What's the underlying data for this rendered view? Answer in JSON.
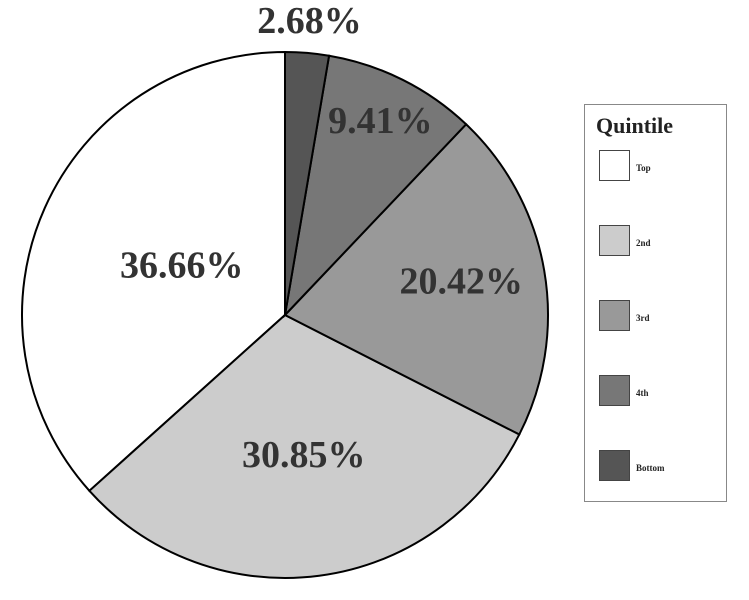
{
  "chart_data": {
    "type": "pie",
    "categories": [
      "Top",
      "2nd",
      "3rd",
      "4th",
      "Bottom"
    ],
    "values": [
      36.66,
      30.85,
      20.42,
      9.41,
      2.68
    ],
    "value_labels": [
      "36.66%",
      "30.85%",
      "20.42%",
      "9.41%",
      "2.68%"
    ],
    "colors": [
      "#ffffff",
      "#cccccc",
      "#999999",
      "#777777",
      "#555555"
    ],
    "legend_title": "Quintile",
    "legend": "right"
  }
}
